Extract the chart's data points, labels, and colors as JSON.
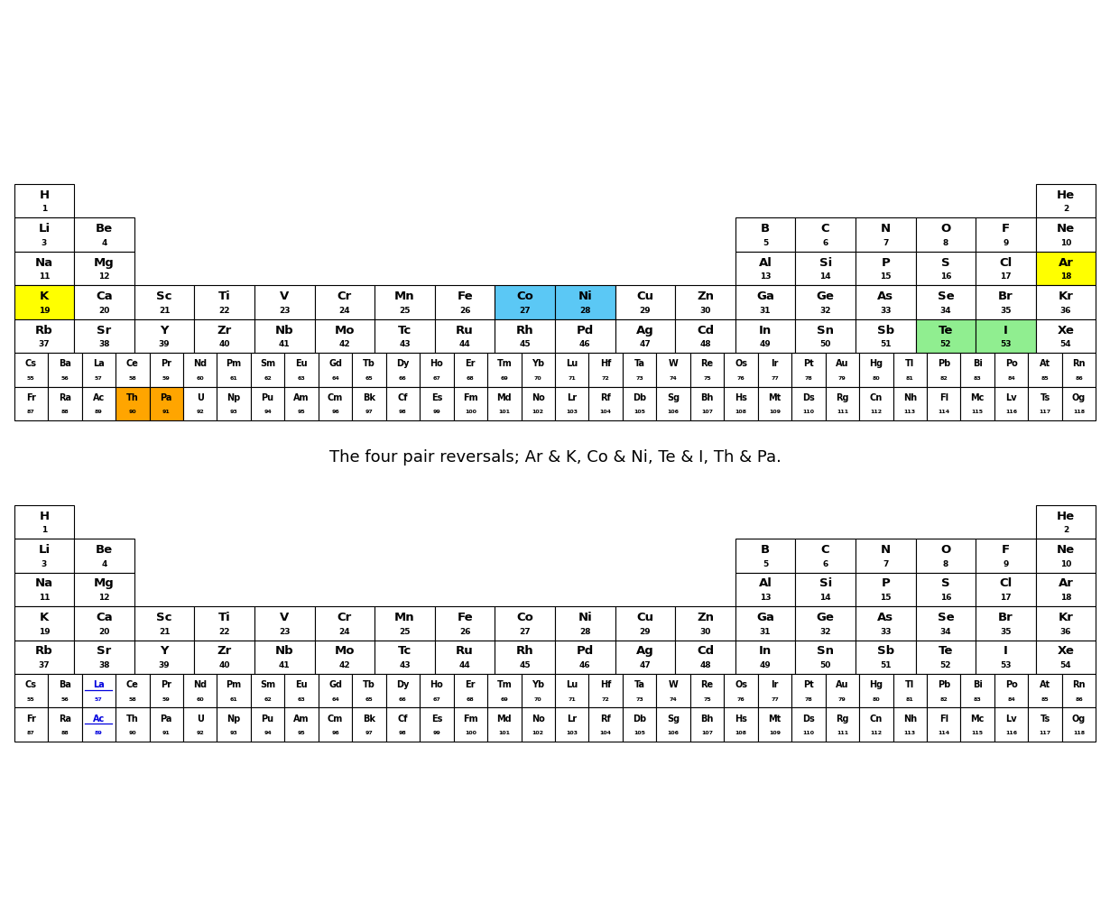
{
  "title_caption": "The four pair reversals; Ar & K, Co & Ni, Te & I, Th & Pa.",
  "background_color": "#ffffff",
  "cell_border_color": "#000000",
  "cell_bg_default": "#ffffff",
  "cell_text_default": "#000000",
  "highlight_yellow": "#ffff00",
  "highlight_blue": "#5bc8f5",
  "highlight_green": "#90ee90",
  "highlight_orange": "#ffa500",
  "table1_highlights": {
    "K": "yellow",
    "Ar": "yellow",
    "Co": "blue",
    "Ni": "blue",
    "Te": "green",
    "I": "green",
    "Th": "orange",
    "Pa": "orange"
  },
  "elements": [
    {
      "sym": "H",
      "num": 1,
      "row": 0,
      "col": 0
    },
    {
      "sym": "He",
      "num": 2,
      "row": 0,
      "col": 17
    },
    {
      "sym": "Li",
      "num": 3,
      "row": 1,
      "col": 0
    },
    {
      "sym": "Be",
      "num": 4,
      "row": 1,
      "col": 1
    },
    {
      "sym": "B",
      "num": 5,
      "row": 1,
      "col": 12
    },
    {
      "sym": "C",
      "num": 6,
      "row": 1,
      "col": 13
    },
    {
      "sym": "N",
      "num": 7,
      "row": 1,
      "col": 14
    },
    {
      "sym": "O",
      "num": 8,
      "row": 1,
      "col": 15
    },
    {
      "sym": "F",
      "num": 9,
      "row": 1,
      "col": 16
    },
    {
      "sym": "Ne",
      "num": 10,
      "row": 1,
      "col": 17
    },
    {
      "sym": "Na",
      "num": 11,
      "row": 2,
      "col": 0
    },
    {
      "sym": "Mg",
      "num": 12,
      "row": 2,
      "col": 1
    },
    {
      "sym": "Al",
      "num": 13,
      "row": 2,
      "col": 12
    },
    {
      "sym": "Si",
      "num": 14,
      "row": 2,
      "col": 13
    },
    {
      "sym": "P",
      "num": 15,
      "row": 2,
      "col": 14
    },
    {
      "sym": "S",
      "num": 16,
      "row": 2,
      "col": 15
    },
    {
      "sym": "Cl",
      "num": 17,
      "row": 2,
      "col": 16
    },
    {
      "sym": "Ar",
      "num": 18,
      "row": 2,
      "col": 17
    },
    {
      "sym": "K",
      "num": 19,
      "row": 3,
      "col": 0
    },
    {
      "sym": "Ca",
      "num": 20,
      "row": 3,
      "col": 1
    },
    {
      "sym": "Sc",
      "num": 21,
      "row": 3,
      "col": 2
    },
    {
      "sym": "Ti",
      "num": 22,
      "row": 3,
      "col": 3
    },
    {
      "sym": "V",
      "num": 23,
      "row": 3,
      "col": 4
    },
    {
      "sym": "Cr",
      "num": 24,
      "row": 3,
      "col": 5
    },
    {
      "sym": "Mn",
      "num": 25,
      "row": 3,
      "col": 6
    },
    {
      "sym": "Fe",
      "num": 26,
      "row": 3,
      "col": 7
    },
    {
      "sym": "Co",
      "num": 27,
      "row": 3,
      "col": 8
    },
    {
      "sym": "Ni",
      "num": 28,
      "row": 3,
      "col": 9
    },
    {
      "sym": "Cu",
      "num": 29,
      "row": 3,
      "col": 10
    },
    {
      "sym": "Zn",
      "num": 30,
      "row": 3,
      "col": 11
    },
    {
      "sym": "Ga",
      "num": 31,
      "row": 3,
      "col": 12
    },
    {
      "sym": "Ge",
      "num": 32,
      "row": 3,
      "col": 13
    },
    {
      "sym": "As",
      "num": 33,
      "row": 3,
      "col": 14
    },
    {
      "sym": "Se",
      "num": 34,
      "row": 3,
      "col": 15
    },
    {
      "sym": "Br",
      "num": 35,
      "row": 3,
      "col": 16
    },
    {
      "sym": "Kr",
      "num": 36,
      "row": 3,
      "col": 17
    },
    {
      "sym": "Rb",
      "num": 37,
      "row": 4,
      "col": 0
    },
    {
      "sym": "Sr",
      "num": 38,
      "row": 4,
      "col": 1
    },
    {
      "sym": "Y",
      "num": 39,
      "row": 4,
      "col": 2
    },
    {
      "sym": "Zr",
      "num": 40,
      "row": 4,
      "col": 3
    },
    {
      "sym": "Nb",
      "num": 41,
      "row": 4,
      "col": 4
    },
    {
      "sym": "Mo",
      "num": 42,
      "row": 4,
      "col": 5
    },
    {
      "sym": "Tc",
      "num": 43,
      "row": 4,
      "col": 6
    },
    {
      "sym": "Ru",
      "num": 44,
      "row": 4,
      "col": 7
    },
    {
      "sym": "Rh",
      "num": 45,
      "row": 4,
      "col": 8
    },
    {
      "sym": "Pd",
      "num": 46,
      "row": 4,
      "col": 9
    },
    {
      "sym": "Ag",
      "num": 47,
      "row": 4,
      "col": 10
    },
    {
      "sym": "Cd",
      "num": 48,
      "row": 4,
      "col": 11
    },
    {
      "sym": "In",
      "num": 49,
      "row": 4,
      "col": 12
    },
    {
      "sym": "Sn",
      "num": 50,
      "row": 4,
      "col": 13
    },
    {
      "sym": "Sb",
      "num": 51,
      "row": 4,
      "col": 14
    },
    {
      "sym": "Te",
      "num": 52,
      "row": 4,
      "col": 15
    },
    {
      "sym": "I",
      "num": 53,
      "row": 4,
      "col": 16
    },
    {
      "sym": "Xe",
      "num": 54,
      "row": 4,
      "col": 17
    },
    {
      "sym": "Cs",
      "num": 55,
      "row": 5,
      "col": 0
    },
    {
      "sym": "Ba",
      "num": 56,
      "row": 5,
      "col": 1
    },
    {
      "sym": "La",
      "num": 57,
      "row": 5,
      "col": 2
    },
    {
      "sym": "Ce",
      "num": 58,
      "row": 5,
      "col": 3
    },
    {
      "sym": "Pr",
      "num": 59,
      "row": 5,
      "col": 4
    },
    {
      "sym": "Nd",
      "num": 60,
      "row": 5,
      "col": 5
    },
    {
      "sym": "Pm",
      "num": 61,
      "row": 5,
      "col": 6
    },
    {
      "sym": "Sm",
      "num": 62,
      "row": 5,
      "col": 7
    },
    {
      "sym": "Eu",
      "num": 63,
      "row": 5,
      "col": 8
    },
    {
      "sym": "Gd",
      "num": 64,
      "row": 5,
      "col": 9
    },
    {
      "sym": "Tb",
      "num": 65,
      "row": 5,
      "col": 10
    },
    {
      "sym": "Dy",
      "num": 66,
      "row": 5,
      "col": 11
    },
    {
      "sym": "Ho",
      "num": 67,
      "row": 5,
      "col": 12
    },
    {
      "sym": "Er",
      "num": 68,
      "row": 5,
      "col": 13
    },
    {
      "sym": "Tm",
      "num": 69,
      "row": 5,
      "col": 14
    },
    {
      "sym": "Yb",
      "num": 70,
      "row": 5,
      "col": 15
    },
    {
      "sym": "Lu",
      "num": 71,
      "row": 5,
      "col": 16
    },
    {
      "sym": "Hf",
      "num": 72,
      "row": 5,
      "col": 17
    },
    {
      "sym": "Ta",
      "num": 73,
      "row": 5,
      "col": 18
    },
    {
      "sym": "W",
      "num": 74,
      "row": 5,
      "col": 19
    },
    {
      "sym": "Re",
      "num": 75,
      "row": 5,
      "col": 20
    },
    {
      "sym": "Os",
      "num": 76,
      "row": 5,
      "col": 21
    },
    {
      "sym": "Ir",
      "num": 77,
      "row": 5,
      "col": 22
    },
    {
      "sym": "Pt",
      "num": 78,
      "row": 5,
      "col": 23
    },
    {
      "sym": "Au",
      "num": 79,
      "row": 5,
      "col": 24
    },
    {
      "sym": "Hg",
      "num": 80,
      "row": 5,
      "col": 25
    },
    {
      "sym": "Tl",
      "num": 81,
      "row": 5,
      "col": 26
    },
    {
      "sym": "Pb",
      "num": 82,
      "row": 5,
      "col": 27
    },
    {
      "sym": "Bi",
      "num": 83,
      "row": 5,
      "col": 28
    },
    {
      "sym": "Po",
      "num": 84,
      "row": 5,
      "col": 29
    },
    {
      "sym": "At",
      "num": 85,
      "row": 5,
      "col": 30
    },
    {
      "sym": "Rn",
      "num": 86,
      "row": 5,
      "col": 31
    },
    {
      "sym": "Fr",
      "num": 87,
      "row": 6,
      "col": 0
    },
    {
      "sym": "Ra",
      "num": 88,
      "row": 6,
      "col": 1
    },
    {
      "sym": "Ac",
      "num": 89,
      "row": 6,
      "col": 2
    },
    {
      "sym": "Th",
      "num": 90,
      "row": 6,
      "col": 3
    },
    {
      "sym": "Pa",
      "num": 91,
      "row": 6,
      "col": 4
    },
    {
      "sym": "U",
      "num": 92,
      "row": 6,
      "col": 5
    },
    {
      "sym": "Np",
      "num": 93,
      "row": 6,
      "col": 6
    },
    {
      "sym": "Pu",
      "num": 94,
      "row": 6,
      "col": 7
    },
    {
      "sym": "Am",
      "num": 95,
      "row": 6,
      "col": 8
    },
    {
      "sym": "Cm",
      "num": 96,
      "row": 6,
      "col": 9
    },
    {
      "sym": "Bk",
      "num": 97,
      "row": 6,
      "col": 10
    },
    {
      "sym": "Cf",
      "num": 98,
      "row": 6,
      "col": 11
    },
    {
      "sym": "Es",
      "num": 99,
      "row": 6,
      "col": 12
    },
    {
      "sym": "Fm",
      "num": 100,
      "row": 6,
      "col": 13
    },
    {
      "sym": "Md",
      "num": 101,
      "row": 6,
      "col": 14
    },
    {
      "sym": "No",
      "num": 102,
      "row": 6,
      "col": 15
    },
    {
      "sym": "Lr",
      "num": 103,
      "row": 6,
      "col": 16
    },
    {
      "sym": "Rf",
      "num": 104,
      "row": 6,
      "col": 17
    },
    {
      "sym": "Db",
      "num": 105,
      "row": 6,
      "col": 18
    },
    {
      "sym": "Sg",
      "num": 106,
      "row": 6,
      "col": 19
    },
    {
      "sym": "Bh",
      "num": 107,
      "row": 6,
      "col": 20
    },
    {
      "sym": "Hs",
      "num": 108,
      "row": 6,
      "col": 21
    },
    {
      "sym": "Mt",
      "num": 109,
      "row": 6,
      "col": 22
    },
    {
      "sym": "Ds",
      "num": 110,
      "row": 6,
      "col": 23
    },
    {
      "sym": "Rg",
      "num": 111,
      "row": 6,
      "col": 24
    },
    {
      "sym": "Cn",
      "num": 112,
      "row": 6,
      "col": 25
    },
    {
      "sym": "Nh",
      "num": 113,
      "row": 6,
      "col": 26
    },
    {
      "sym": "Fl",
      "num": 114,
      "row": 6,
      "col": 27
    },
    {
      "sym": "Mc",
      "num": 115,
      "row": 6,
      "col": 28
    },
    {
      "sym": "Lv",
      "num": 116,
      "row": 6,
      "col": 29
    },
    {
      "sym": "Ts",
      "num": 117,
      "row": 6,
      "col": 30
    },
    {
      "sym": "Og",
      "num": 118,
      "row": 6,
      "col": 31
    }
  ],
  "fig_width": 12.3,
  "fig_height": 10.22,
  "dpi": 100,
  "caption_fontsize": 13,
  "sym_fs_main": 9.5,
  "num_fs_main": 6.5,
  "sym_fs_long": 7.0,
  "num_fs_long": 4.5,
  "cell_lw": 0.8,
  "n_cols_main": 18,
  "n_cols_long": 32,
  "n_rows": 7
}
